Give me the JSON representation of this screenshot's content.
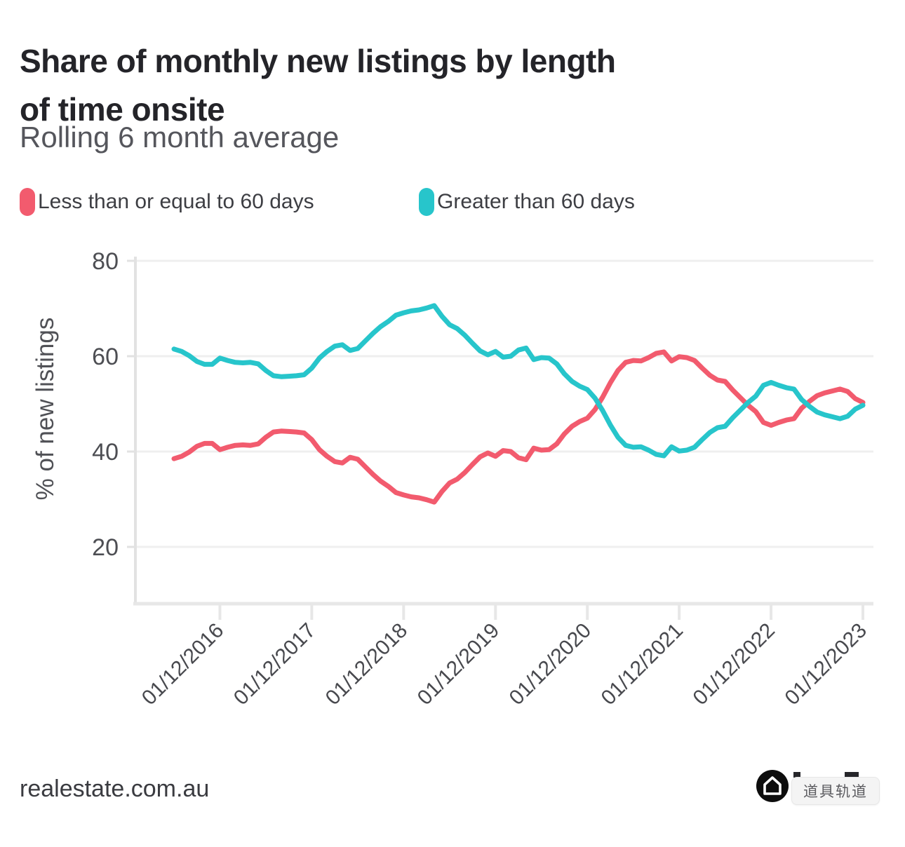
{
  "header": {
    "title_line1": "Share of monthly new listings by length",
    "title_line2": "of time onsite",
    "subtitle": "Rolling 6 month average"
  },
  "legend": {
    "items": [
      {
        "label": "Less than or equal to 60 days",
        "color": "#f25b6e"
      },
      {
        "label": "Greater than 60 days",
        "color": "#27c5cb"
      }
    ]
  },
  "footer": {
    "brand": "realestate.com.au",
    "tooltip_text": "道具轨道",
    "home_icon": "home-icon"
  },
  "chart_data": {
    "type": "line",
    "title": "Share of monthly new listings by length of time onsite",
    "subtitle": "Rolling 6 month average",
    "xlabel": "",
    "ylabel": "% of new listings",
    "y_ticks": [
      80,
      60,
      40,
      20
    ],
    "ylim": [
      8,
      81
    ],
    "grid": "horizontal",
    "legend_position": "top-left",
    "x_start": "01/06/2016",
    "x_interval": "monthly",
    "x_tick_labels": [
      "01/12/2016",
      "01/12/2017",
      "01/12/2018",
      "01/12/2019",
      "01/12/2020",
      "01/12/2021",
      "01/12/2022",
      "01/12/2023"
    ],
    "series": [
      {
        "name": "Less than or equal to 60 days",
        "color": "#f25b6e",
        "values": [
          38.5,
          39.0,
          39.9,
          41.1,
          41.7,
          41.7,
          40.4,
          40.9,
          41.3,
          41.4,
          41.3,
          41.6,
          43.0,
          44.1,
          44.3,
          44.2,
          44.1,
          43.9,
          42.5,
          40.4,
          39.0,
          37.9,
          37.6,
          38.8,
          38.4,
          36.8,
          35.2,
          33.8,
          32.7,
          31.4,
          30.9,
          30.5,
          30.3,
          29.9,
          29.4,
          31.6,
          33.4,
          34.2,
          35.6,
          37.3,
          38.9,
          39.7,
          39.0,
          40.2,
          40.0,
          38.7,
          38.3,
          40.7,
          40.3,
          40.4,
          41.6,
          43.7,
          45.3,
          46.3,
          47.0,
          48.8,
          51.4,
          54.4,
          57.0,
          58.7,
          59.1,
          59.0,
          59.7,
          60.6,
          60.9,
          59.0,
          59.9,
          59.7,
          59.1,
          57.5,
          56.0,
          55.0,
          54.7,
          52.9,
          51.3,
          49.7,
          48.4,
          46.1,
          45.5,
          46.1,
          46.6,
          46.9,
          49.1,
          50.5,
          51.7,
          52.3,
          52.7,
          53.1,
          52.6,
          51.1,
          50.3
        ]
      },
      {
        "name": "Greater than 60 days",
        "color": "#27c5cb",
        "values": [
          61.5,
          61.0,
          60.1,
          58.9,
          58.3,
          58.3,
          59.6,
          59.1,
          58.7,
          58.6,
          58.7,
          58.4,
          57.0,
          55.9,
          55.7,
          55.8,
          55.9,
          56.1,
          57.5,
          59.6,
          61.0,
          62.1,
          62.4,
          61.2,
          61.6,
          63.2,
          64.8,
          66.2,
          67.3,
          68.6,
          69.1,
          69.5,
          69.7,
          70.1,
          70.6,
          68.4,
          66.6,
          65.8,
          64.4,
          62.7,
          61.1,
          60.3,
          61.0,
          59.8,
          60.0,
          61.3,
          61.7,
          59.3,
          59.7,
          59.6,
          58.4,
          56.3,
          54.7,
          53.7,
          53.0,
          51.2,
          48.6,
          45.6,
          43.0,
          41.3,
          40.9,
          41.0,
          40.3,
          39.4,
          39.1,
          41.0,
          40.1,
          40.3,
          40.9,
          42.5,
          44.0,
          45.0,
          45.3,
          47.1,
          48.7,
          50.3,
          51.6,
          53.9,
          54.5,
          53.9,
          53.4,
          53.1,
          50.9,
          49.5,
          48.3,
          47.7,
          47.3,
          46.9,
          47.4,
          48.9,
          49.7
        ]
      }
    ]
  }
}
